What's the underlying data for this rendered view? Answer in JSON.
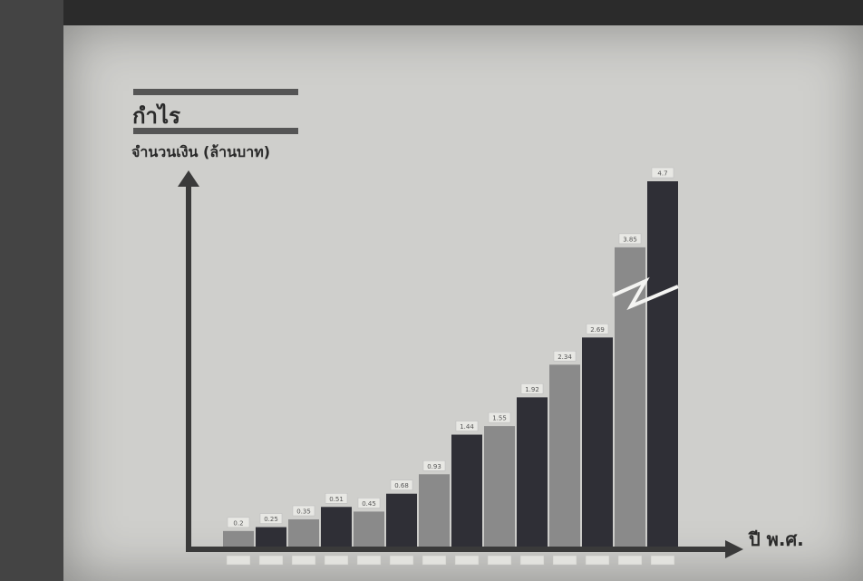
{
  "chart_data": {
    "type": "bar",
    "title": "กำไร",
    "ylabel": "จำนวนเงิน (ล้านบาท)",
    "xlabel": "ปี พ.ศ.",
    "ylim": [
      0,
      4.7
    ],
    "bars": [
      {
        "x_label": "",
        "value": 0.2,
        "label": "0.2"
      },
      {
        "x_label": "",
        "value": 0.25,
        "label": "0.25"
      },
      {
        "x_label": "",
        "value": 0.35,
        "label": "0.35"
      },
      {
        "x_label": "",
        "value": 0.51,
        "label": "0.51"
      },
      {
        "x_label": "",
        "value": 0.45,
        "label": "0.45"
      },
      {
        "x_label": "",
        "value": 0.68,
        "label": "0.68"
      },
      {
        "x_label": "",
        "value": 0.93,
        "label": "0.93"
      },
      {
        "x_label": "",
        "value": 1.44,
        "label": "1.44"
      },
      {
        "x_label": "",
        "value": 1.55,
        "label": "1.55"
      },
      {
        "x_label": "",
        "value": 1.92,
        "label": "1.92"
      },
      {
        "x_label": "",
        "value": 2.34,
        "label": "2.34"
      },
      {
        "x_label": "",
        "value": 2.69,
        "label": "2.69"
      },
      {
        "x_label": "",
        "value": 3.85,
        "label": "3.85"
      },
      {
        "x_label": "",
        "value": 4.7,
        "label": "4.7"
      }
    ],
    "colors": {
      "dark": "#2f2f36",
      "light": "#8a8a8a",
      "axis": "#3a3a3a"
    }
  }
}
